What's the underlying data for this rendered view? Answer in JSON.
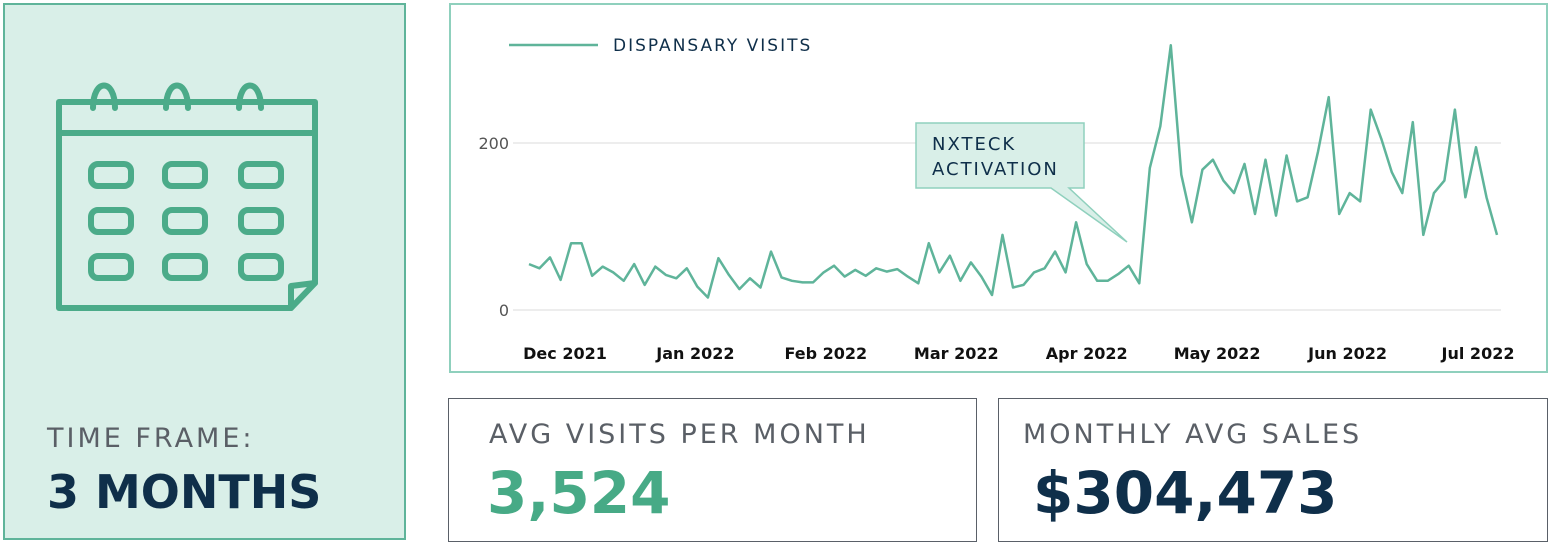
{
  "timeframe": {
    "label": "TIME FRAME:",
    "value": "3 MONTHS"
  },
  "stats": {
    "avg_visits_label": "AVG VISITS PER MONTH",
    "avg_visits_value": "3,524",
    "monthly_sales_label": "MONTHLY AVG SALES",
    "monthly_sales_value": "$304,473"
  },
  "colors": {
    "line": "#5fb49a",
    "accent": "#47aa86",
    "navy": "#0f2f4a",
    "panel_bg": "#d9efe8"
  },
  "icons": {
    "calendar": "calendar-icon"
  },
  "chart_data": {
    "type": "line",
    "legend": "DISPANSARY VISITS",
    "legend_placement": "top-left",
    "series": [
      {
        "name": "DISPANSARY VISITS",
        "values": [
          55,
          50,
          63,
          36,
          80,
          80,
          41,
          52,
          45,
          35,
          55,
          30,
          52,
          42,
          38,
          50,
          28,
          15,
          62,
          42,
          25,
          38,
          27,
          70,
          39,
          35,
          33,
          33,
          45,
          53,
          40,
          48,
          41,
          50,
          46,
          49,
          40,
          32,
          80,
          45,
          65,
          35,
          57,
          40,
          18,
          90,
          27,
          30,
          45,
          50,
          70,
          45,
          105,
          55,
          35,
          35,
          43,
          53,
          32,
          170,
          220,
          317,
          162,
          105,
          168,
          180,
          155,
          140,
          175,
          115,
          180,
          113,
          185,
          130,
          135,
          190,
          255,
          115,
          140,
          130,
          240,
          205,
          165,
          140,
          225,
          90,
          140,
          155,
          240,
          135,
          195,
          135,
          90
        ]
      }
    ],
    "x_tick_labels": [
      "Dec 2021",
      "Jan 2022",
      "Feb 2022",
      "Mar 2022",
      "Apr 2022",
      "May 2022",
      "Jun 2022",
      "Jul 2022"
    ],
    "y_ticks": [
      0,
      200
    ],
    "ylim": [
      0,
      320
    ],
    "grid": "horizontal",
    "annotation": {
      "text_line1": "NXTECK",
      "text_line2": "ACTIVATION",
      "points_to_index": 58
    }
  }
}
